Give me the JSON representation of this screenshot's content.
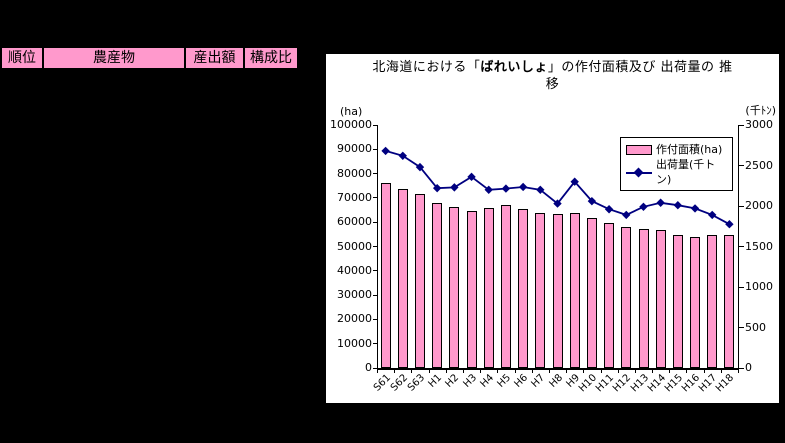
{
  "page": {
    "background": "#000000"
  },
  "ranking_table": {
    "header_fill": "#FF99CC",
    "header": [
      {
        "label": "順位"
      },
      {
        "label": "農産物"
      },
      {
        "label": "産出額"
      },
      {
        "label": "構成比"
      }
    ]
  },
  "chart": {
    "background": "#FFFFFF",
    "title": {
      "prefix": "北海道における「",
      "emphasis": "ばれいしょ",
      "suffix": "」の作付面積及び 出荷量の 推",
      "line2": "移"
    },
    "left_axis_unit": "(ha)",
    "right_axis_unit": "(千ﾄﾝ)"
  },
  "chart_data": {
    "type": "bar",
    "title": "北海道における「ばれいしょ」の作付面積及び 出荷量の 推移",
    "categories": [
      "S61",
      "S62",
      "S63",
      "H1",
      "H2",
      "H3",
      "H4",
      "H5",
      "H6",
      "H7",
      "H8",
      "H9",
      "H10",
      "H11",
      "H12",
      "H13",
      "H14",
      "H15",
      "H16",
      "H17",
      "H18"
    ],
    "series": [
      {
        "name": "作付面積(ha)",
        "type": "bar",
        "axis": "left",
        "color": "#FF99CC",
        "values": [
          76000,
          73500,
          71500,
          67800,
          66300,
          64800,
          65900,
          67300,
          65600,
          63700,
          63300,
          63700,
          61600,
          59800,
          58200,
          57400,
          56900,
          54700,
          54100,
          54700,
          54700
        ]
      },
      {
        "name": "出荷量(千トン)",
        "type": "line",
        "axis": "right",
        "color": "#000080",
        "values": [
          2680,
          2620,
          2480,
          2220,
          2230,
          2360,
          2200,
          2215,
          2235,
          2200,
          2030,
          2300,
          2060,
          1960,
          1890,
          1990,
          2040,
          2010,
          1970,
          1890,
          1775
        ]
      }
    ],
    "left_axis": {
      "min": 0,
      "max": 100000,
      "step": 10000,
      "unit": "(ha)"
    },
    "right_axis": {
      "min": 0,
      "max": 3000,
      "step": 500,
      "unit": "(千ﾄﾝ)"
    },
    "grid": false,
    "legend_position": "top-right",
    "x_label_rotation": -45
  }
}
